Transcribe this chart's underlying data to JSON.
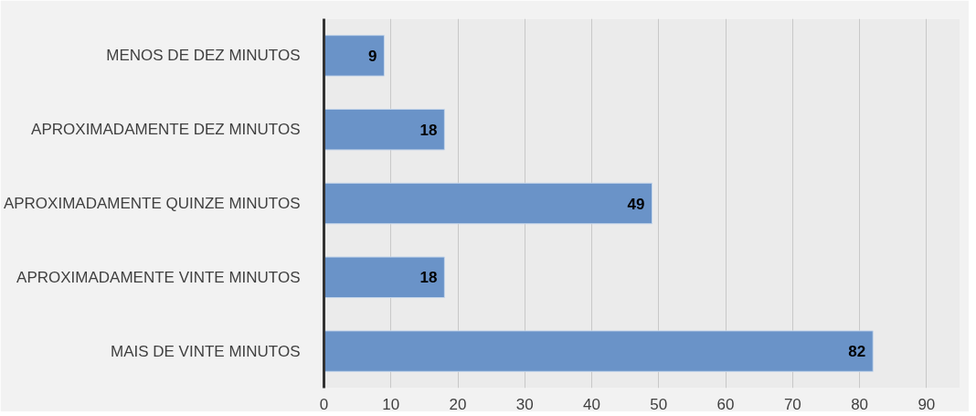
{
  "chart_data": {
    "type": "bar",
    "orientation": "horizontal",
    "categories": [
      "MENOS DE DEZ MINUTOS",
      "APROXIMADAMENTE DEZ MINUTOS",
      "APROXIMADAMENTE QUINZE MINUTOS",
      "APROXIMADAMENTE VINTE MINUTOS",
      "MAIS DE VINTE MINUTOS"
    ],
    "values": [
      9,
      18,
      49,
      18,
      82
    ],
    "color": "#6a93c8",
    "xlim": [
      0,
      95
    ],
    "xticks": [
      0,
      10,
      20,
      30,
      40,
      50,
      60,
      70,
      80,
      90
    ],
    "grid": "x",
    "data_labels": true
  }
}
